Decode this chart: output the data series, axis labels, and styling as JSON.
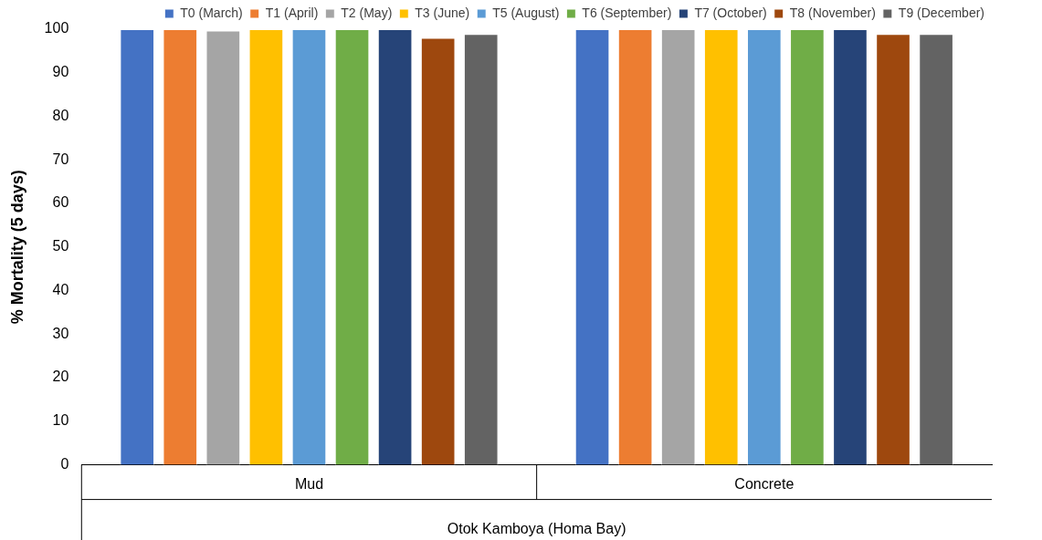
{
  "chart_data": {
    "type": "bar",
    "xlabel": "Otok Kamboya (Homa Bay)",
    "ylabel": "% Mortality (5 days)",
    "categories": [
      "Mud",
      "Concrete"
    ],
    "series": [
      {
        "name": "T0 (March)",
        "color": "#4472c4",
        "values": [
          100,
          100
        ]
      },
      {
        "name": "T1 (April)",
        "color": "#ed7d31",
        "values": [
          100,
          100
        ]
      },
      {
        "name": "T2 (May)",
        "color": "#a5a5a5",
        "values": [
          99.7,
          100
        ]
      },
      {
        "name": "T3 (June)",
        "color": "#ffc000",
        "values": [
          100,
          100
        ]
      },
      {
        "name": "T5 (August)",
        "color": "#5b9bd5",
        "values": [
          100,
          100
        ]
      },
      {
        "name": "T6 (September)",
        "color": "#70ad47",
        "values": [
          100,
          100
        ]
      },
      {
        "name": "T7 (October)",
        "color": "#264478",
        "values": [
          100,
          100
        ]
      },
      {
        "name": "T8 (November)",
        "color": "#9e480e",
        "values": [
          98,
          98.9
        ]
      },
      {
        "name": "T9 (December)",
        "color": "#636363",
        "values": [
          98.9,
          98.9
        ]
      }
    ],
    "ylim": [
      0,
      100
    ],
    "yticks": [
      0,
      10,
      20,
      30,
      40,
      50,
      60,
      70,
      80,
      90,
      100
    ],
    "grid": false,
    "legend": "top right"
  }
}
